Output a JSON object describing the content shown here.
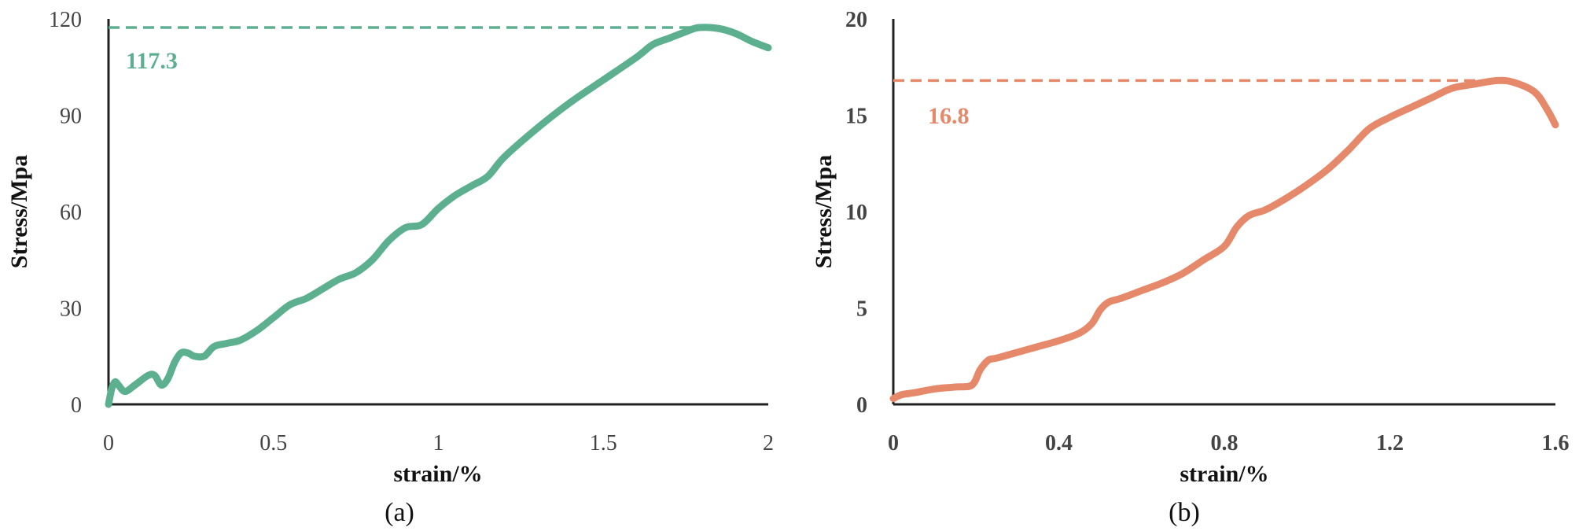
{
  "chart_data": [
    {
      "type": "line",
      "panel_label": "(a)",
      "xlabel": "strain/%",
      "ylabel": "Stress/Mpa",
      "xlim": [
        0,
        2
      ],
      "ylim": [
        0,
        120
      ],
      "x_ticks": [
        "0",
        "0.5",
        "1",
        "1.5",
        "2"
      ],
      "y_ticks": [
        "0",
        "30",
        "60",
        "90",
        "120"
      ],
      "color": "#5cb090",
      "peak": {
        "x": 1.79,
        "y": 117.3,
        "label": "117.3"
      },
      "series": [
        {
          "x": [
            0,
            0.01,
            0.02,
            0.03,
            0.05,
            0.08,
            0.12,
            0.14,
            0.16,
            0.18,
            0.2,
            0.22,
            0.24,
            0.26,
            0.29,
            0.32,
            0.36,
            0.4,
            0.45,
            0.5,
            0.55,
            0.6,
            0.65,
            0.7,
            0.75,
            0.8,
            0.85,
            0.9,
            0.95,
            1.0,
            1.05,
            1.1,
            1.15,
            1.2,
            1.3,
            1.4,
            1.5,
            1.6,
            1.65,
            1.7,
            1.75,
            1.79,
            1.85,
            1.9,
            1.95,
            2.0
          ],
          "values": [
            0,
            5,
            7,
            6,
            4,
            6,
            9,
            9,
            6,
            8,
            13,
            16,
            16,
            15,
            15,
            18,
            19,
            20,
            23,
            27,
            31,
            33,
            36,
            39,
            41,
            45,
            51,
            55,
            56,
            61,
            65,
            68,
            71,
            77,
            86,
            94,
            101,
            108,
            112,
            114,
            116,
            117.3,
            117,
            115.5,
            113,
            111
          ]
        }
      ]
    },
    {
      "type": "line",
      "panel_label": "(b)",
      "xlabel": "strain/%",
      "ylabel": "Stress/Mpa",
      "xlim": [
        0,
        1.6
      ],
      "ylim": [
        0,
        20
      ],
      "x_ticks": [
        "0",
        "0.4",
        "0.8",
        "1.2",
        "1.6"
      ],
      "y_ticks": [
        "0",
        "5",
        "10",
        "15",
        "20"
      ],
      "color": "#e6896a",
      "peak": {
        "x": 1.46,
        "y": 16.8,
        "label": "16.8"
      },
      "series": [
        {
          "x": [
            0,
            0.02,
            0.05,
            0.1,
            0.15,
            0.19,
            0.21,
            0.23,
            0.25,
            0.3,
            0.35,
            0.4,
            0.45,
            0.48,
            0.5,
            0.52,
            0.55,
            0.6,
            0.65,
            0.7,
            0.75,
            0.8,
            0.83,
            0.86,
            0.9,
            0.95,
            1.0,
            1.05,
            1.1,
            1.15,
            1.2,
            1.25,
            1.3,
            1.35,
            1.4,
            1.46,
            1.5,
            1.55,
            1.58,
            1.6
          ],
          "values": [
            0.3,
            0.5,
            0.6,
            0.8,
            0.9,
            1.0,
            1.8,
            2.3,
            2.4,
            2.7,
            3.0,
            3.3,
            3.7,
            4.2,
            4.9,
            5.3,
            5.5,
            5.9,
            6.3,
            6.8,
            7.5,
            8.2,
            9.2,
            9.8,
            10.1,
            10.7,
            11.4,
            12.2,
            13.2,
            14.3,
            14.9,
            15.4,
            15.9,
            16.4,
            16.6,
            16.8,
            16.7,
            16.2,
            15.3,
            14.5
          ]
        }
      ]
    }
  ]
}
